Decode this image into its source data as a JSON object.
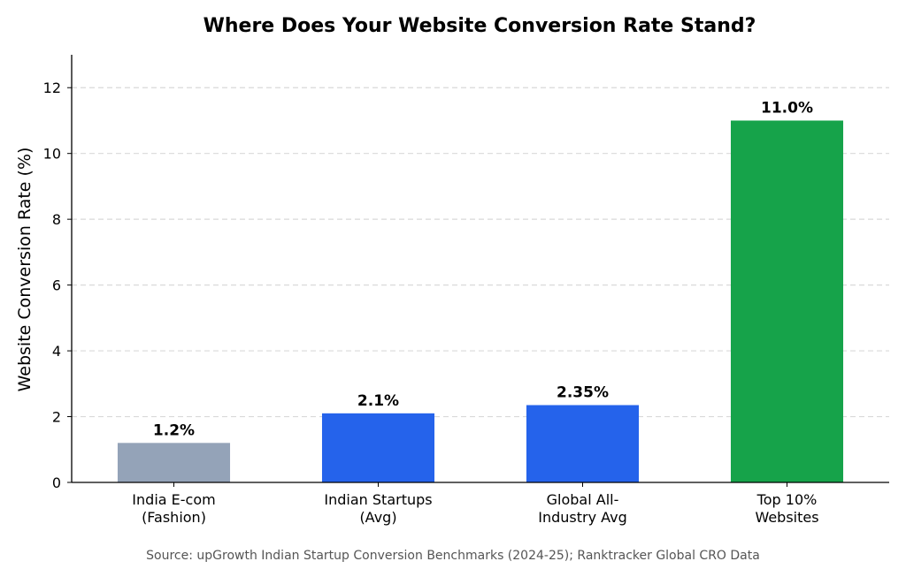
{
  "chart_data": {
    "type": "bar",
    "title": "Where Does Your Website Conversion Rate Stand?",
    "ylabel": "Website Conversion Rate (%)",
    "xlabel": "",
    "ylim": [
      0,
      13
    ],
    "yticks": [
      0,
      2,
      4,
      6,
      8,
      10,
      12
    ],
    "grid": "horizontal-dashed",
    "categories": [
      [
        "India E-com",
        "(Fashion)"
      ],
      [
        "Indian Startups",
        "(Avg)"
      ],
      [
        "Global All-",
        "Industry Avg"
      ],
      [
        "Top 10%",
        "Websites"
      ]
    ],
    "values": [
      1.2,
      2.1,
      2.35,
      11.0
    ],
    "value_labels": [
      "1.2%",
      "2.1%",
      "2.35%",
      "11.0%"
    ],
    "colors": [
      "#94a3b8",
      "#2563eb",
      "#2563eb",
      "#16a34a"
    ],
    "source": "Source: upGrowth Indian Startup Conversion Benchmarks (2024-25); Ranktracker Global CRO Data"
  }
}
